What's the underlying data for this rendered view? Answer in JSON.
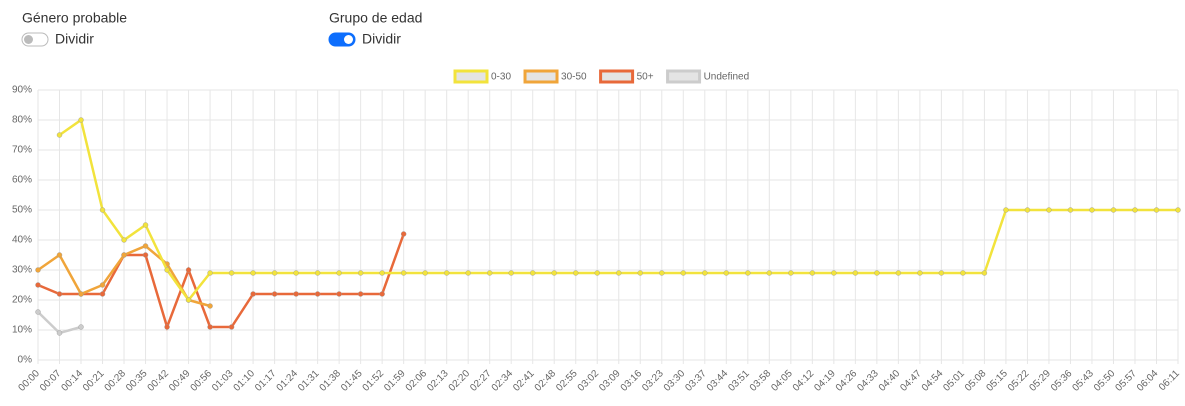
{
  "controls": [
    {
      "label": "Género probable",
      "toggle_label": "Dividir",
      "on": false
    },
    {
      "label": "Grupo de edad",
      "toggle_label": "Dividir",
      "on": true
    }
  ],
  "chart_data": {
    "type": "line",
    "categories": [
      "00:00",
      "00:07",
      "00:14",
      "00:21",
      "00:28",
      "00:35",
      "00:42",
      "00:49",
      "00:56",
      "01:03",
      "01:10",
      "01:17",
      "01:24",
      "01:31",
      "01:38",
      "01:45",
      "01:52",
      "01:59",
      "02:06",
      "02:13",
      "02:20",
      "02:27",
      "02:34",
      "02:41",
      "02:48",
      "02:55",
      "03:02",
      "03:09",
      "03:16",
      "03:23",
      "03:30",
      "03:37",
      "03:44",
      "03:51",
      "03:58",
      "04:05",
      "04:12",
      "04:19",
      "04:26",
      "04:33",
      "04:40",
      "04:47",
      "04:54",
      "05:01",
      "05:08",
      "05:15",
      "05:22",
      "05:29",
      "05:36",
      "05:43",
      "05:50",
      "05:57",
      "06:04",
      "06:11"
    ],
    "series": [
      {
        "name": "0-30",
        "color": "#f2e33c",
        "values": [
          null,
          75,
          80,
          50,
          40,
          45,
          30,
          20,
          29,
          29,
          29,
          29,
          29,
          29,
          29,
          29,
          29,
          29,
          29,
          29,
          29,
          29,
          29,
          29,
          29,
          29,
          29,
          29,
          29,
          29,
          29,
          29,
          29,
          29,
          29,
          29,
          29,
          29,
          29,
          29,
          29,
          29,
          29,
          29,
          29,
          50,
          50,
          50,
          50,
          50,
          50,
          50,
          50,
          50
        ]
      },
      {
        "name": "30-50",
        "color": "#f0a53a",
        "values": [
          30,
          35,
          22,
          25,
          35,
          38,
          32,
          20,
          18,
          null,
          null,
          null,
          null,
          null,
          null,
          null,
          null,
          null,
          null,
          null,
          null,
          null,
          null,
          null,
          null,
          null,
          null,
          null,
          null,
          null,
          null,
          null,
          null,
          null,
          null,
          null,
          null,
          null,
          null,
          null,
          null,
          null,
          null,
          null,
          null,
          null,
          null,
          null,
          null,
          null,
          null,
          null,
          null,
          null
        ]
      },
      {
        "name": "50+",
        "color": "#e8693a",
        "values": [
          25,
          22,
          22,
          22,
          35,
          35,
          11,
          30,
          11,
          11,
          22,
          22,
          22,
          22,
          22,
          22,
          22,
          42,
          null,
          null,
          null,
          null,
          null,
          null,
          null,
          null,
          null,
          null,
          null,
          null,
          null,
          null,
          null,
          null,
          null,
          null,
          null,
          null,
          null,
          null,
          null,
          null,
          null,
          null,
          null,
          null,
          null,
          null,
          null,
          null,
          null,
          null,
          null,
          null
        ]
      },
      {
        "name": "Undefined",
        "color": "#cccccc",
        "values": [
          16,
          9,
          11,
          null,
          null,
          null,
          null,
          null,
          null,
          null,
          null,
          null,
          null,
          null,
          null,
          null,
          null,
          null,
          null,
          null,
          null,
          null,
          null,
          null,
          null,
          null,
          null,
          null,
          null,
          null,
          null,
          null,
          null,
          null,
          null,
          null,
          null,
          null,
          null,
          null,
          null,
          null,
          null,
          null,
          null,
          null,
          null,
          null,
          null,
          null,
          null,
          null,
          null,
          null
        ]
      }
    ],
    "ylim": [
      0,
      90
    ],
    "yticks": [
      {
        "value": 0,
        "label": "0%"
      },
      {
        "value": 10,
        "label": "10%"
      },
      {
        "value": 20,
        "label": "20%"
      },
      {
        "value": 30,
        "label": "30%"
      },
      {
        "value": 40,
        "label": "40%"
      },
      {
        "value": 50,
        "label": "50%"
      },
      {
        "value": 60,
        "label": "60%"
      },
      {
        "value": 70,
        "label": "70%"
      },
      {
        "value": 80,
        "label": "80%"
      },
      {
        "value": 90,
        "label": "90%"
      }
    ],
    "grid": true,
    "legend": "top"
  }
}
